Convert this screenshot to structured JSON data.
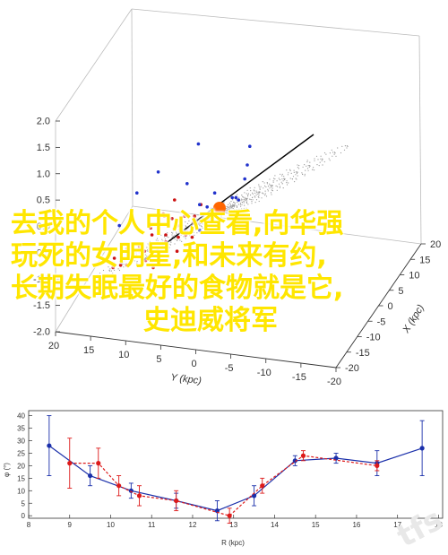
{
  "overlay": {
    "lines": [
      "去我的个人中心查看,向华强",
      "玩死的女明星,和未来有约,",
      "长期失眠最好的食物就是它,",
      "史迪威将军"
    ],
    "color": "#ffe600"
  },
  "watermark": "tfs",
  "chart_data": [
    {
      "type": "scatter",
      "projection": "3d",
      "title": "",
      "xlabel": "X (kpc)",
      "ylabel": "Y (kpc)",
      "zlabel": "",
      "x_ticks": [
        "-20",
        "-15",
        "-10",
        "-5",
        "0",
        "5",
        "10",
        "15",
        "20"
      ],
      "y_ticks": [
        "20",
        "15",
        "10",
        "5",
        "0",
        "-5",
        "-10",
        "-15",
        "-20"
      ],
      "z_ticks": [
        "2.0",
        "1.5",
        "1.0",
        "0.5",
        "0.0",
        "-0.5",
        "-1.0",
        "-1.5",
        "-2.0"
      ],
      "xlim": [
        -20,
        20
      ],
      "ylim": [
        -20,
        20
      ],
      "zlim": [
        -2,
        2
      ],
      "series": [
        {
          "color": "#cc1111",
          "values": [
            [
              -2,
              5,
              0.1
            ],
            [
              -4,
              6,
              0.2
            ],
            [
              -6,
              7,
              0.0
            ],
            [
              -8,
              8,
              0.3
            ],
            [
              -10,
              7,
              -0.2
            ],
            [
              -12,
              9,
              0.1
            ],
            [
              -5,
              3,
              -0.1
            ],
            [
              -7,
              4,
              0.4
            ],
            [
              -3,
              8,
              -0.3
            ],
            [
              -9,
              10,
              0.2
            ],
            [
              -11,
              6,
              0.0
            ],
            [
              -6,
              11,
              0.5
            ],
            [
              -4,
              2,
              0.2
            ],
            [
              -13,
              8,
              -0.1
            ],
            [
              -8,
              5,
              0.6
            ],
            [
              -2,
              9,
              0.0
            ],
            [
              -10,
              12,
              0.3
            ],
            [
              -7,
              9,
              -0.4
            ],
            [
              -5,
              6,
              0.8
            ],
            [
              -3,
              4,
              -0.2
            ],
            [
              -9,
              3,
              0.1
            ],
            [
              -12,
              11,
              0.0
            ],
            [
              -6,
              2,
              0.3
            ],
            [
              -14,
              10,
              0.2
            ],
            [
              -1,
              6,
              0.1
            ],
            [
              -11,
              4,
              -0.3
            ],
            [
              -8,
              13,
              0.1
            ],
            [
              -4,
              10,
              0.6
            ],
            [
              -15,
              9,
              0.0
            ],
            [
              -2,
              3,
              0.4
            ]
          ]
        },
        {
          "color": "#2233cc",
          "values": [
            [
              0,
              2,
              0.0
            ],
            [
              1,
              1,
              0.1
            ],
            [
              -1,
              3,
              -0.1
            ],
            [
              2,
              0,
              0.2
            ],
            [
              -2,
              1,
              0.0
            ],
            [
              0,
              4,
              0.3
            ],
            [
              3,
              2,
              -0.2
            ],
            [
              1,
              5,
              0.1
            ],
            [
              -3,
              2,
              0.4
            ],
            [
              2,
              3,
              0.0
            ],
            [
              4,
              1,
              0.1
            ],
            [
              -1,
              0,
              -0.3
            ],
            [
              5,
              3,
              0.2
            ],
            [
              0,
              6,
              -0.1
            ],
            [
              6,
              2,
              0.5
            ],
            [
              -4,
              4,
              1.0
            ],
            [
              3,
              7,
              0.2
            ],
            [
              8,
              4,
              0.8
            ],
            [
              -6,
              9,
              1.6
            ],
            [
              10,
              6,
              1.2
            ],
            [
              -8,
              12,
              1.4
            ],
            [
              2,
              9,
              1.8
            ],
            [
              6,
              10,
              0.6
            ],
            [
              -10,
              14,
              0.9
            ]
          ]
        }
      ],
      "marker_center": {
        "color": "#ff6600",
        "point": [
          0,
          0,
          0
        ]
      }
    },
    {
      "type": "line",
      "title": "",
      "xlabel": "R (kpc)",
      "ylabel": "φ (°)",
      "x_ticks": [
        "8",
        "9",
        "10",
        "11",
        "12",
        "13",
        "14",
        "15",
        "16",
        "17",
        "18"
      ],
      "y_ticks": [
        "40",
        "35",
        "30",
        "25",
        "20",
        "15",
        "10",
        "5",
        "0"
      ],
      "xlim": [
        8,
        18.1
      ],
      "ylim": [
        -1,
        42
      ],
      "series": [
        {
          "color": "#1a2faa",
          "style": "solid",
          "x": [
            8.5,
            9.5,
            10.5,
            11.6,
            12.6,
            13.5,
            14.5,
            15.5,
            16.5,
            17.6
          ],
          "y": [
            28,
            16,
            10,
            6,
            2,
            8,
            22,
            23,
            21,
            27
          ],
          "err": [
            12,
            4,
            3,
            3,
            4,
            4,
            2,
            2,
            5,
            11
          ]
        },
        {
          "color": "#dd1a1a",
          "style": "dashed",
          "x": [
            9.0,
            9.7,
            10.2,
            10.7,
            11.6,
            12.9,
            13.7,
            14.7,
            16.5
          ],
          "y": [
            21,
            21,
            12,
            8,
            6,
            0,
            12,
            24,
            20
          ],
          "err": [
            10,
            6,
            4,
            4,
            4,
            3,
            3,
            2,
            2
          ]
        }
      ]
    }
  ]
}
